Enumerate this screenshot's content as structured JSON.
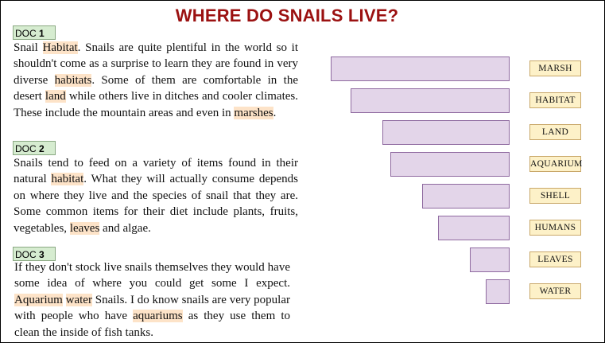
{
  "title": "WHERE DO SNAILS LIVE?",
  "docs": [
    {
      "label_prefix": "DOC ",
      "label_num": "1",
      "segments": [
        {
          "text": "Snail ",
          "hl": false
        },
        {
          "text": "Habitat",
          "hl": true
        },
        {
          "text": ". Snails are quite plentiful in the world so it shouldn't come as a surprise to learn they are found in very diverse ",
          "hl": false
        },
        {
          "text": "habitats",
          "hl": true
        },
        {
          "text": ". Some of them are comfortable in the desert ",
          "hl": false
        },
        {
          "text": "land",
          "hl": true
        },
        {
          "text": " while others live in ditches and cooler climates. These include the mountain areas and even in ",
          "hl": false
        },
        {
          "text": "marshes",
          "hl": true
        },
        {
          "text": ".",
          "hl": false
        }
      ]
    },
    {
      "label_prefix": "DOC ",
      "label_num": "2",
      "segments": [
        {
          "text": "Snails tend to feed on a variety of items found in their natural ",
          "hl": false
        },
        {
          "text": "habitat",
          "hl": true
        },
        {
          "text": ". What they will actually consume depends on where they live and the species of snail that they are. Some common items for their diet include plants, fruits, vegetables, ",
          "hl": false
        },
        {
          "text": "leaves",
          "hl": true
        },
        {
          "text": " and algae.",
          "hl": false
        }
      ]
    },
    {
      "label_prefix": "DOC ",
      "label_num": "3",
      "segments": [
        {
          "text": "If they don't stock live snails themselves they would have some idea of where you could get some I expect. ",
          "hl": false
        },
        {
          "text": "Aquarium",
          "hl": true
        },
        {
          "text": " ",
          "hl": false
        },
        {
          "text": "water",
          "hl": true
        },
        {
          "text": " Snails. I do know snails are very popular with people who have ",
          "hl": false
        },
        {
          "text": "aquariums",
          "hl": true
        },
        {
          "text": " as they use them to clean the inside of fish tanks.",
          "hl": false
        }
      ]
    }
  ],
  "words": [
    {
      "label": "MARSH",
      "weight": 1.0
    },
    {
      "label": "HABITAT",
      "weight": 0.889
    },
    {
      "label": "LAND",
      "weight": 0.711
    },
    {
      "label": "AQUARIUM",
      "weight": 0.667
    },
    {
      "label": "SHELL",
      "weight": 0.489
    },
    {
      "label": "HUMANS",
      "weight": 0.4
    },
    {
      "label": "LEAVES",
      "weight": 0.222
    },
    {
      "label": "WATER",
      "weight": 0.133
    }
  ],
  "colors": {
    "title": "#9b1111",
    "highlight": "#fde3c8",
    "bar_fill": "#e3d5e9",
    "bar_border": "#8f6aa0",
    "word_fill": "#fdf1c8",
    "doc_label_fill": "#d6ecd0"
  }
}
